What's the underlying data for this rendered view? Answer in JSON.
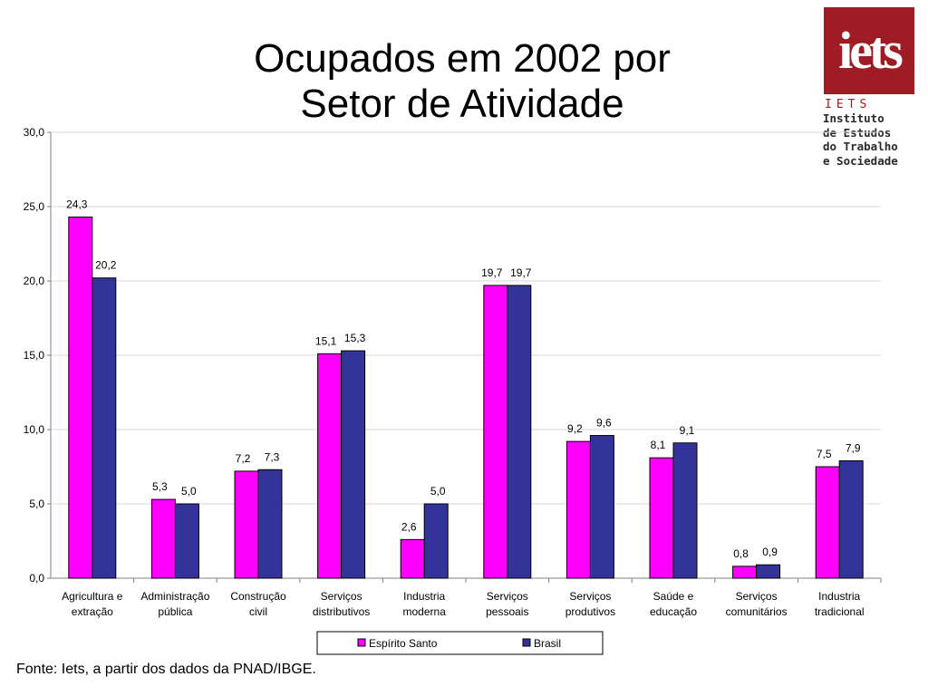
{
  "title_lines": [
    "Ocupados em 2002 por",
    "Setor de Atividade"
  ],
  "logo": {
    "letters": "iets",
    "abbrev": "IETS",
    "lines": [
      "Instituto",
      "de Estudos",
      "do Trabalho",
      "e Sociedade"
    ],
    "color": "#a01c24"
  },
  "source": "Fonte: Iets, a partir dos dados da PNAD/IBGE.",
  "chart_data": {
    "type": "bar",
    "categories": [
      [
        "Agricultura e",
        "extração"
      ],
      [
        "Administração",
        "pública"
      ],
      [
        "Construção",
        "civil"
      ],
      [
        "Serviços",
        "distributivos"
      ],
      [
        "Industria",
        "moderna"
      ],
      [
        "Serviços",
        "pessoais"
      ],
      [
        "Serviços",
        "produtivos"
      ],
      [
        "Saúde e",
        "educação"
      ],
      [
        "Serviços",
        "comunitários"
      ],
      [
        "Industria",
        "tradicional"
      ]
    ],
    "series": [
      {
        "name": "Espírito Santo",
        "color": "#ff00ff",
        "values": [
          24.3,
          5.3,
          7.2,
          15.1,
          2.6,
          19.7,
          9.2,
          8.1,
          0.8,
          7.5
        ],
        "labels": [
          "24,3",
          "5,3",
          "7,2",
          "15,1",
          "2,6",
          "19,7",
          "9,2",
          "8,1",
          "0,8",
          "7,5"
        ]
      },
      {
        "name": "Brasil",
        "color": "#333399",
        "values": [
          20.2,
          5.0,
          7.3,
          15.3,
          5.0,
          19.7,
          9.6,
          9.1,
          0.9,
          7.9
        ],
        "labels": [
          "20,2",
          "5,0",
          "7,3",
          "15,3",
          "5,0",
          "19,7",
          "9,6",
          "9,1",
          "0,9",
          "7,9"
        ]
      }
    ],
    "ylim": [
      0,
      30
    ],
    "yticks": [
      0,
      5,
      10,
      15,
      20,
      25,
      30
    ],
    "ytick_labels": [
      "0,0",
      "5,0",
      "10,0",
      "15,0",
      "20,0",
      "25,0",
      "30,0"
    ],
    "grid": true,
    "legend_position": "bottom"
  }
}
